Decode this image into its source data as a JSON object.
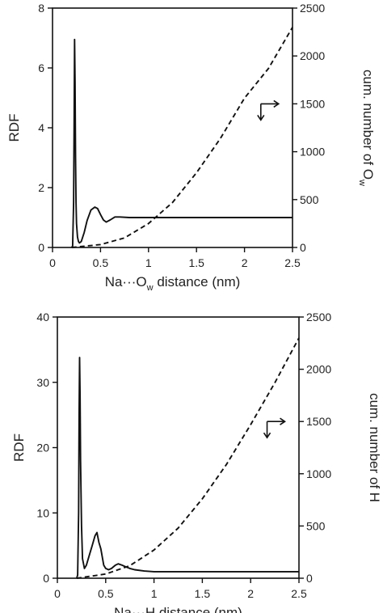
{
  "chart_data": [
    {
      "type": "line",
      "xlabel": {
        "pre": "Na···O",
        "sub": "w",
        "post": " distance (nm)"
      },
      "ylabel": "RDF",
      "y2label": {
        "pre": "cum. number of O",
        "sub": "w"
      },
      "xlim": [
        0,
        2.5
      ],
      "ylim": [
        0,
        8
      ],
      "y2lim": [
        0,
        2500
      ],
      "xticks": [
        "0",
        "0.5",
        "1",
        "1.5",
        "2",
        "2.5"
      ],
      "yticks": [
        "0",
        "2",
        "4",
        "6",
        "8"
      ],
      "y2ticks": [
        "0",
        "500",
        "1000",
        "1500",
        "2000",
        "2500"
      ],
      "annotation": "arrows indicating the dashed curve belongs to the right axis",
      "series": [
        {
          "axis": "left",
          "style": "solid",
          "x": [
            0.2,
            0.21,
            0.22,
            0.225,
            0.23,
            0.235,
            0.24,
            0.245,
            0.25,
            0.26,
            0.27,
            0.28,
            0.3,
            0.33,
            0.36,
            0.4,
            0.44,
            0.47,
            0.5,
            0.53,
            0.56,
            0.6,
            0.65,
            0.7,
            0.8,
            1.0,
            1.5,
            2.0,
            2.5
          ],
          "values": [
            0,
            0.05,
            1.5,
            4.0,
            6.95,
            5.5,
            3.0,
            1.5,
            0.8,
            0.35,
            0.2,
            0.15,
            0.2,
            0.5,
            0.9,
            1.25,
            1.35,
            1.3,
            1.1,
            0.92,
            0.85,
            0.92,
            1.02,
            1.02,
            1.0,
            1.0,
            1.0,
            1.0,
            1.0
          ]
        },
        {
          "axis": "right",
          "style": "dashed",
          "x": [
            0.2,
            0.5,
            0.75,
            1.0,
            1.25,
            1.5,
            1.75,
            2.0,
            2.25,
            2.5
          ],
          "values": [
            0,
            30,
            100,
            250,
            470,
            780,
            1140,
            1560,
            1870,
            2300
          ]
        }
      ]
    },
    {
      "type": "line",
      "xlabel": {
        "pre": "Na···H distance (nm)",
        "sub": "",
        "post": ""
      },
      "ylabel": "RDF",
      "y2label": {
        "pre": "cum. number of H",
        "sub": ""
      },
      "xlim": [
        0,
        2.5
      ],
      "ylim": [
        0,
        40
      ],
      "y2lim": [
        0,
        2500
      ],
      "xticks": [
        "0",
        "0.5",
        "1",
        "1.5",
        "2",
        "2.5"
      ],
      "yticks": [
        "0",
        "10",
        "20",
        "30",
        "40"
      ],
      "y2ticks": [
        "0",
        "500",
        "1000",
        "1500",
        "2000",
        "2500"
      ],
      "annotation": "arrows indicating the dashed curve belongs to the right axis",
      "series": [
        {
          "axis": "left",
          "style": "solid",
          "x": [
            0.2,
            0.21,
            0.22,
            0.225,
            0.23,
            0.235,
            0.24,
            0.25,
            0.26,
            0.28,
            0.3,
            0.33,
            0.36,
            0.39,
            0.41,
            0.43,
            0.45,
            0.48,
            0.5,
            0.53,
            0.56,
            0.6,
            0.63,
            0.67,
            0.7,
            0.75,
            0.8,
            0.9,
            1.0,
            1.2,
            1.5,
            2.0,
            2.5
          ],
          "values": [
            0,
            0.5,
            10,
            25,
            33.8,
            28,
            18,
            8,
            3,
            1.5,
            2,
            3.5,
            5,
            6.5,
            7,
            5.5,
            4.5,
            2,
            1.5,
            1.3,
            1.5,
            2.0,
            2.2,
            2.0,
            1.8,
            1.5,
            1.3,
            1.1,
            1.0,
            1.0,
            1.0,
            1.0,
            1.0
          ]
        },
        {
          "axis": "right",
          "style": "dashed",
          "x": [
            0.2,
            0.5,
            0.75,
            1.0,
            1.25,
            1.5,
            1.75,
            2.0,
            2.25,
            2.5
          ],
          "values": [
            0,
            40,
            120,
            270,
            480,
            760,
            1090,
            1470,
            1870,
            2300
          ]
        }
      ]
    }
  ]
}
